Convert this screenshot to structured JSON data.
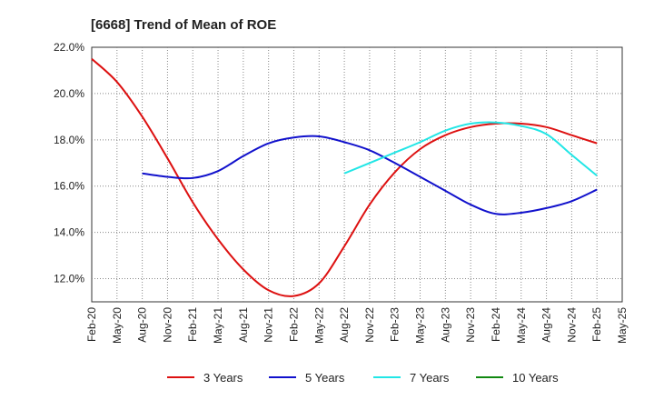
{
  "chart_data": {
    "type": "line",
    "title": "[6668]  Trend of Mean of ROE",
    "xlabel": "",
    "ylabel": "",
    "ylim": [
      11.0,
      22.0
    ],
    "yticks": [
      12.0,
      14.0,
      16.0,
      18.0,
      20.0,
      22.0
    ],
    "ytick_labels": [
      "12.0%",
      "14.0%",
      "16.0%",
      "18.0%",
      "20.0%",
      "22.0%"
    ],
    "x_labels": [
      "Feb-20",
      "May-20",
      "Aug-20",
      "Nov-20",
      "Feb-21",
      "May-21",
      "Aug-21",
      "Nov-21",
      "Feb-22",
      "May-22",
      "Aug-22",
      "Nov-22",
      "Feb-23",
      "May-23",
      "Aug-23",
      "Nov-23",
      "Feb-24",
      "May-24",
      "Aug-24",
      "Nov-24",
      "Feb-25",
      "May-25"
    ],
    "grid": true,
    "legend_position": "bottom",
    "series": [
      {
        "name": "3 Years",
        "color": "#dd1111",
        "values": [
          21.5,
          20.5,
          19.0,
          17.2,
          15.3,
          13.7,
          12.4,
          11.5,
          11.25,
          11.8,
          13.4,
          15.2,
          16.6,
          17.6,
          18.2,
          18.55,
          18.7,
          18.7,
          18.55,
          18.2,
          17.85,
          null
        ]
      },
      {
        "name": "5 Years",
        "color": "#1111cc",
        "values": [
          null,
          null,
          16.55,
          16.4,
          16.35,
          16.65,
          17.3,
          17.85,
          18.1,
          18.15,
          17.9,
          17.55,
          17.0,
          16.4,
          15.8,
          15.2,
          14.8,
          14.85,
          15.05,
          15.35,
          15.85,
          null
        ]
      },
      {
        "name": "7 Years",
        "color": "#22e6e6",
        "values": [
          null,
          null,
          null,
          null,
          null,
          null,
          null,
          null,
          null,
          null,
          16.55,
          17.0,
          17.45,
          17.9,
          18.4,
          18.7,
          18.75,
          18.6,
          18.25,
          17.35,
          16.45,
          null
        ]
      },
      {
        "name": "10 Years",
        "color": "#118811",
        "values": [
          null,
          null,
          null,
          null,
          null,
          null,
          null,
          null,
          null,
          null,
          null,
          null,
          null,
          null,
          null,
          null,
          null,
          null,
          null,
          null,
          null,
          null
        ]
      }
    ]
  }
}
